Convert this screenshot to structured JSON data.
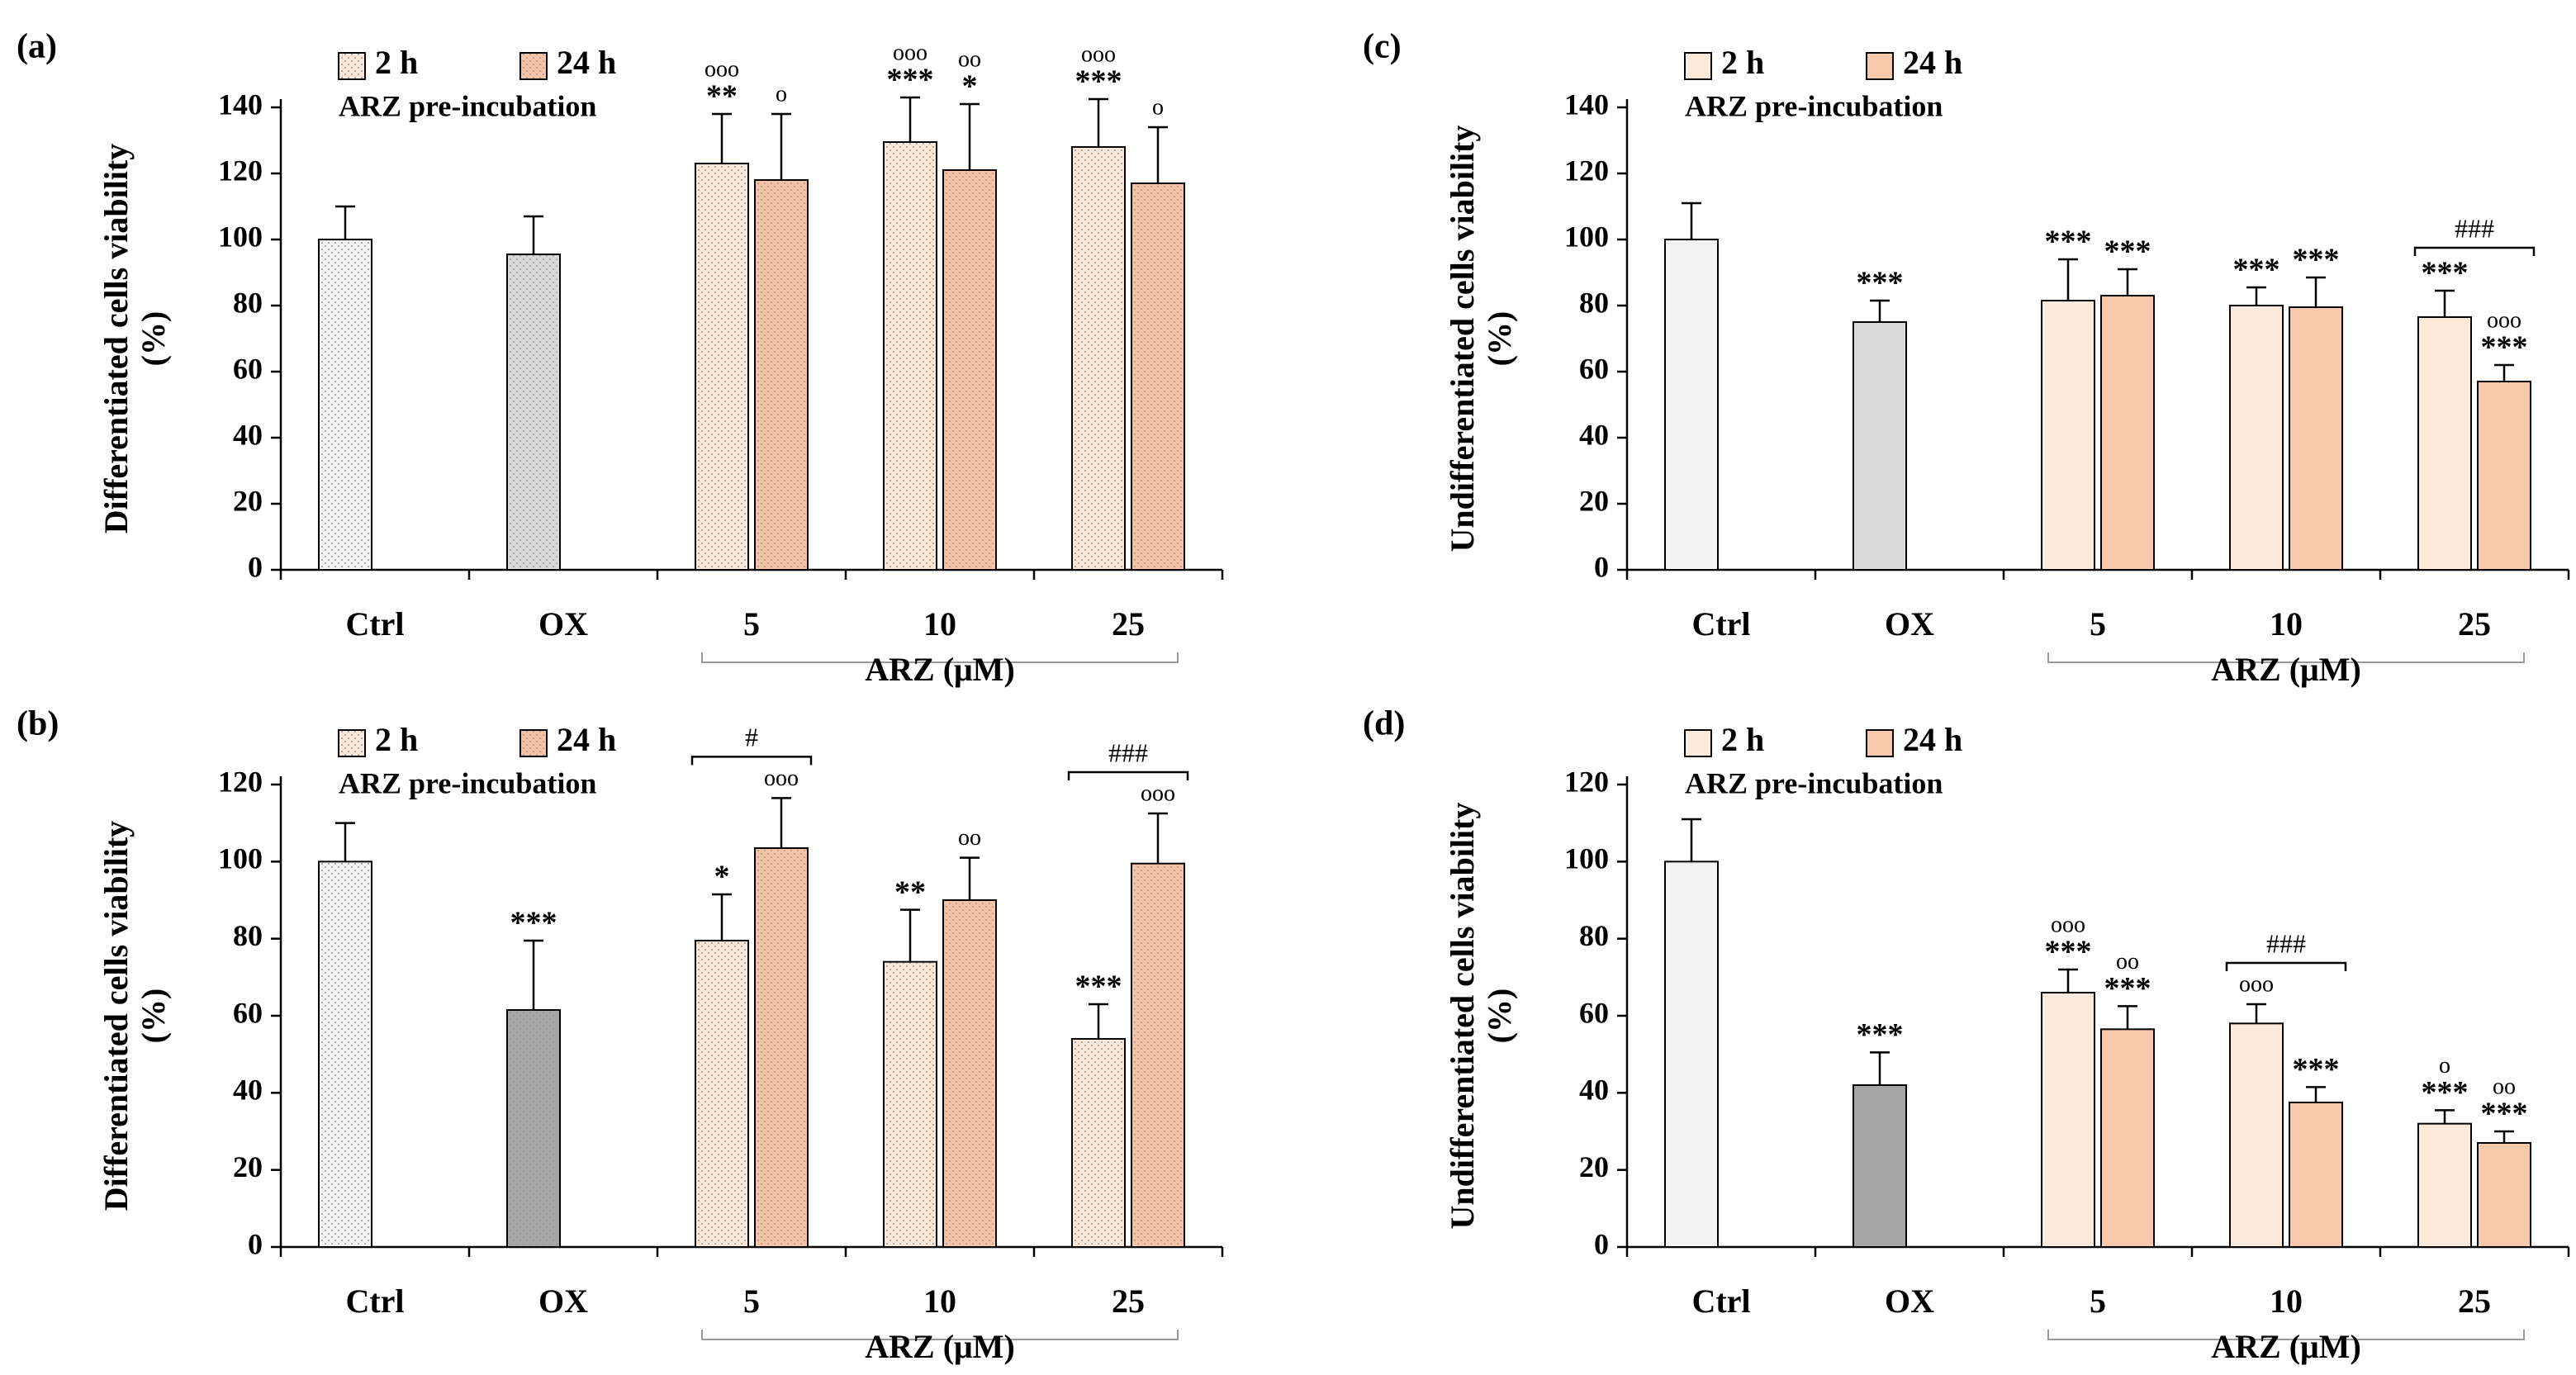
{
  "chart_data": [
    {
      "type": "bar",
      "panel": "(a)",
      "ylabel": "Differentiated cells viability",
      "ylabel_unit": "(%)",
      "legend_note": "ARZ pre-incubation",
      "dotted": true,
      "categories": [
        "Ctrl",
        "OX",
        "5",
        "10",
        "25"
      ],
      "group_label": "ARZ (μM)",
      "ylim": [
        0,
        140
      ],
      "yticks": [
        0,
        20,
        40,
        60,
        80,
        100,
        120,
        140
      ],
      "series": [
        {
          "name": "2 h",
          "color": "#fbe6d6",
          "colors": [
            "#f2f2f2",
            "#d9d9d9",
            "#fbe6d6",
            "#fbe6d6",
            "#fbe6d6"
          ],
          "values": [
            100,
            95.5,
            123,
            129.5,
            128
          ],
          "errors": [
            10,
            11.5,
            15,
            13.5,
            14.5
          ],
          "annotations": [
            null,
            null,
            [
              "ooo",
              "**"
            ],
            [
              "ooo",
              "***"
            ],
            [
              "ooo",
              "***"
            ]
          ]
        },
        {
          "name": "24 h",
          "color": "#f6c4a4",
          "colors": [
            "#f6c4a4",
            "#f6c4a4",
            "#f6c4a4",
            "#f6c4a4",
            "#f6c4a4"
          ],
          "values": [
            null,
            null,
            118,
            121,
            117
          ],
          "errors": [
            null,
            null,
            20,
            20,
            17
          ],
          "annotations": [
            null,
            null,
            [
              "o"
            ],
            [
              "oo",
              "*"
            ],
            [
              "o"
            ]
          ]
        }
      ],
      "brackets": []
    },
    {
      "type": "bar",
      "panel": "(c)",
      "ylabel": "Undifferentiated cells viability",
      "ylabel_unit": "(%)",
      "legend_note": "ARZ pre-incubation",
      "dotted": false,
      "categories": [
        "Ctrl",
        "OX",
        "5",
        "10",
        "25"
      ],
      "group_label": "ARZ (μM)",
      "ylim": [
        0,
        140
      ],
      "yticks": [
        0,
        20,
        40,
        60,
        80,
        100,
        120,
        140
      ],
      "series": [
        {
          "name": "2 h",
          "color": "#fdeadb",
          "colors": [
            "#f2f2f2",
            "#d9d9d9",
            "#fdeadb",
            "#fdeadb",
            "#fdeadb"
          ],
          "values": [
            100,
            75,
            81.5,
            80,
            76.5
          ],
          "errors": [
            11,
            6.5,
            12.5,
            5.5,
            8
          ],
          "annotations": [
            null,
            [
              "***"
            ],
            [
              "***"
            ],
            [
              "***"
            ],
            [
              "***"
            ]
          ]
        },
        {
          "name": "24 h",
          "color": "#f8c9ab",
          "colors": [
            "#f8c9ab",
            "#f8c9ab",
            "#f8c9ab",
            "#f8c9ab",
            "#f8c9ab"
          ],
          "values": [
            null,
            null,
            83,
            79.5,
            57
          ],
          "errors": [
            null,
            null,
            8,
            9,
            5
          ],
          "annotations": [
            null,
            null,
            [
              "***"
            ],
            [
              "***"
            ],
            [
              "ooo",
              "***"
            ]
          ]
        }
      ],
      "brackets": [
        {
          "category": 4,
          "label": "###"
        }
      ]
    },
    {
      "type": "bar",
      "panel": "(b)",
      "ylabel": "Differentiated cells viability",
      "ylabel_unit": "(%)",
      "legend_note": "ARZ pre-incubation",
      "dotted": true,
      "categories": [
        "Ctrl",
        "OX",
        "5",
        "10",
        "25"
      ],
      "group_label": "ARZ (μM)",
      "ylim": [
        0,
        120
      ],
      "yticks": [
        0,
        20,
        40,
        60,
        80,
        100,
        120
      ],
      "series": [
        {
          "name": "2 h",
          "color": "#fbe6d6",
          "colors": [
            "#f2f2f2",
            "#a6a6a6",
            "#fbe6d6",
            "#fbe6d6",
            "#fbe6d6"
          ],
          "values": [
            100,
            61.5,
            79.5,
            74,
            54
          ],
          "errors": [
            10,
            18,
            12,
            13.5,
            9
          ],
          "annotations": [
            null,
            [
              "***"
            ],
            [
              "*"
            ],
            [
              "**"
            ],
            [
              "***"
            ]
          ]
        },
        {
          "name": "24 h",
          "color": "#f6c4a4",
          "colors": [
            "#f6c4a4",
            "#f6c4a4",
            "#f6c4a4",
            "#f6c4a4",
            "#f6c4a4"
          ],
          "values": [
            null,
            null,
            103.5,
            90,
            99.5
          ],
          "errors": [
            null,
            null,
            13,
            11,
            13
          ],
          "annotations": [
            null,
            null,
            [
              "ooo"
            ],
            [
              "oo"
            ],
            [
              "ooo"
            ]
          ]
        }
      ],
      "brackets": [
        {
          "category": 2,
          "label": "#"
        },
        {
          "category": 4,
          "label": "###"
        }
      ]
    },
    {
      "type": "bar",
      "panel": "(d)",
      "ylabel": "Undifferentiated cells viability",
      "ylabel_unit": "(%)",
      "legend_note": "ARZ pre-incubation",
      "dotted": false,
      "categories": [
        "Ctrl",
        "OX",
        "5",
        "10",
        "25"
      ],
      "group_label": "ARZ (μM)",
      "ylim": [
        0,
        120
      ],
      "yticks": [
        0,
        20,
        40,
        60,
        80,
        100,
        120
      ],
      "series": [
        {
          "name": "2 h",
          "color": "#fdeadb",
          "colors": [
            "#f2f2f2",
            "#a6a6a6",
            "#fdeadb",
            "#fdeadb",
            "#fdeadb"
          ],
          "values": [
            100,
            42,
            66,
            58,
            32
          ],
          "errors": [
            11,
            8.5,
            6,
            5,
            3.5
          ],
          "annotations": [
            null,
            [
              "***"
            ],
            [
              "ooo",
              "***"
            ],
            [
              "ooo"
            ],
            [
              "o",
              "***"
            ]
          ]
        },
        {
          "name": "24 h",
          "color": "#f8c9ab",
          "colors": [
            "#f8c9ab",
            "#f8c9ab",
            "#f8c9ab",
            "#f8c9ab",
            "#f8c9ab"
          ],
          "values": [
            null,
            null,
            56.5,
            37.5,
            27
          ],
          "errors": [
            null,
            null,
            6,
            4,
            3
          ],
          "annotations": [
            null,
            null,
            [
              "oo",
              "***"
            ],
            [
              "***"
            ],
            [
              "oo",
              "***"
            ]
          ]
        }
      ],
      "brackets": [
        {
          "category": 3,
          "label": "###"
        }
      ]
    }
  ]
}
